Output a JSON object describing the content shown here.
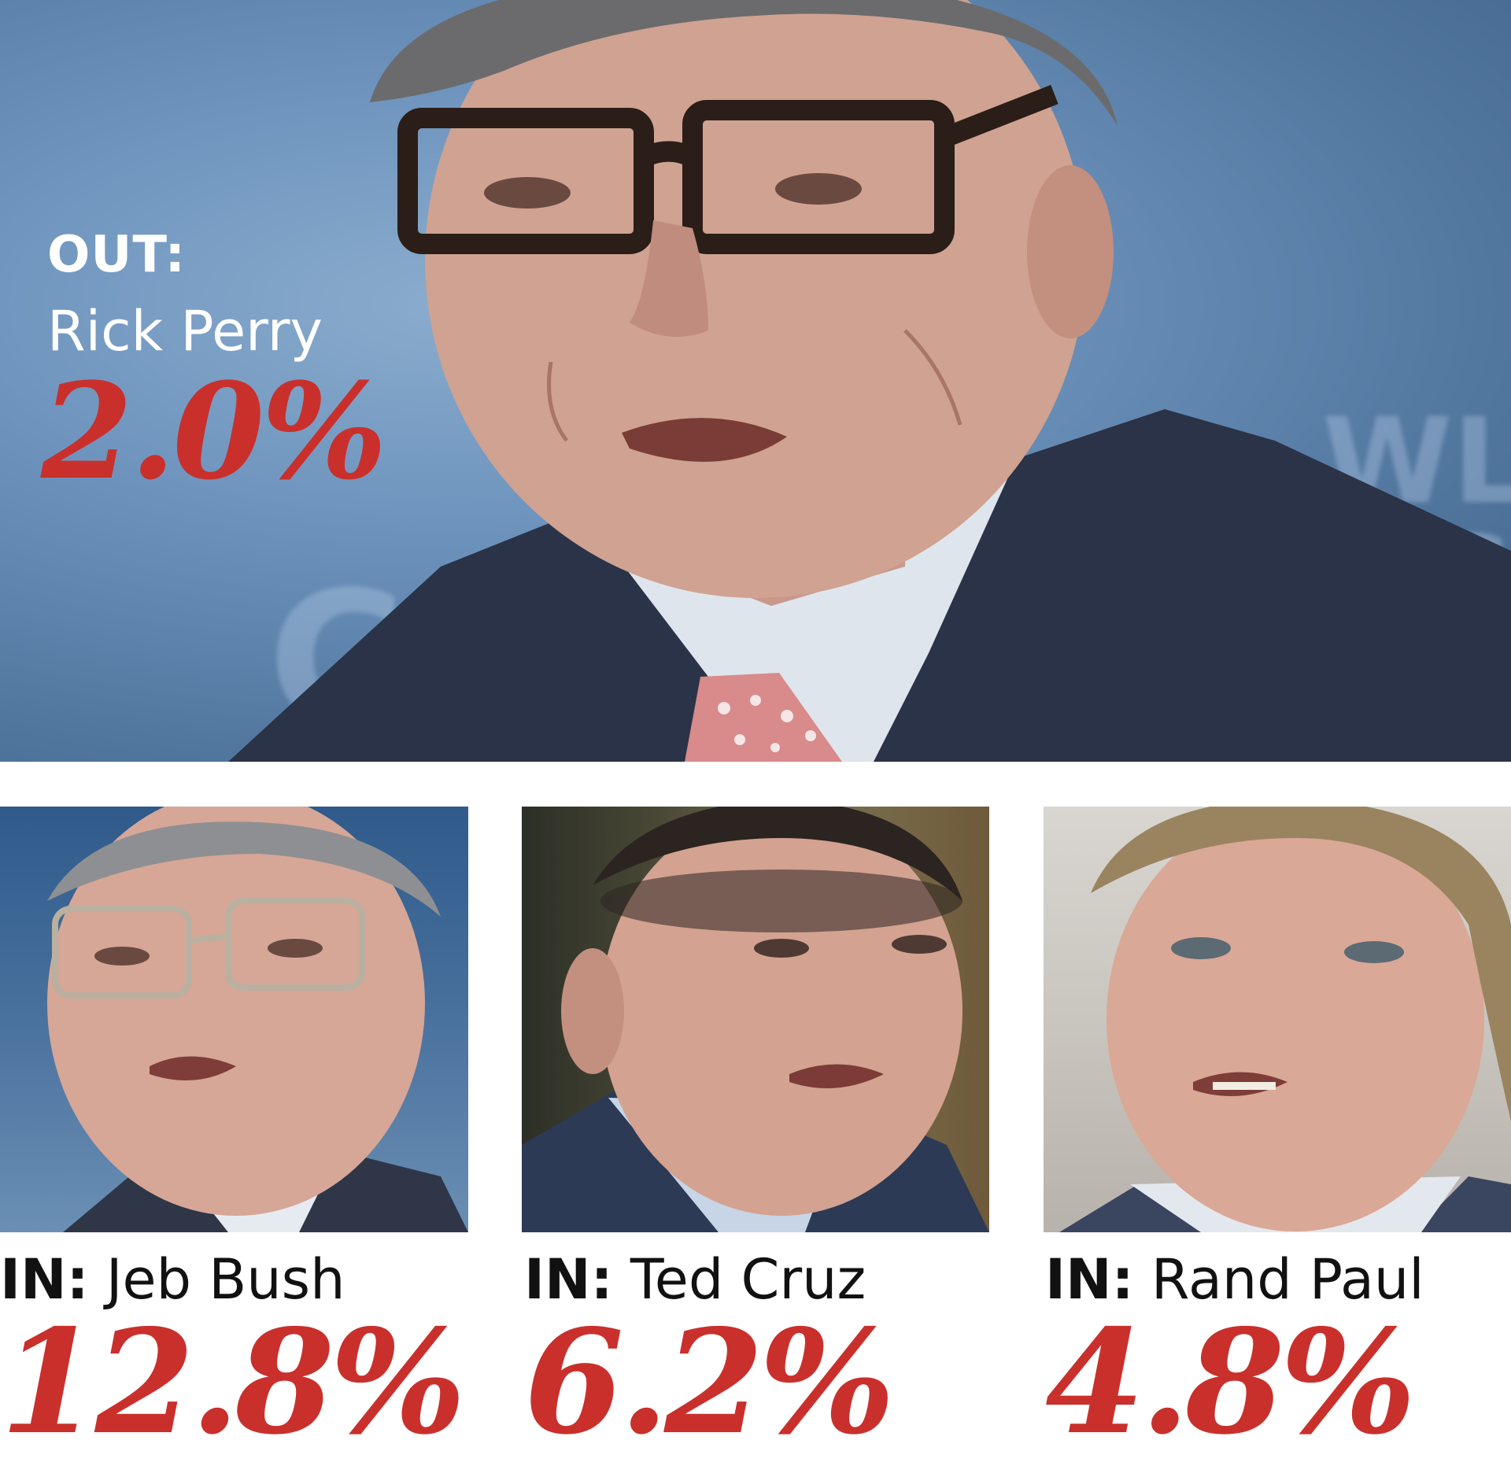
{
  "hero": {
    "status_label": "OUT:",
    "name": "Rick Perry",
    "percent": "2.0%"
  },
  "candidates": [
    {
      "status_label": "IN:",
      "name": "Jeb Bush",
      "percent": "12.8%"
    },
    {
      "status_label": "IN:",
      "name": "Ted Cruz",
      "percent": "6.2%"
    },
    {
      "status_label": "IN:",
      "name": "Rand Paul",
      "percent": "4.8%"
    }
  ],
  "colors": {
    "percent_red": "#c9302c",
    "caption_black": "#111111",
    "hero_text_white": "#ffffff"
  }
}
